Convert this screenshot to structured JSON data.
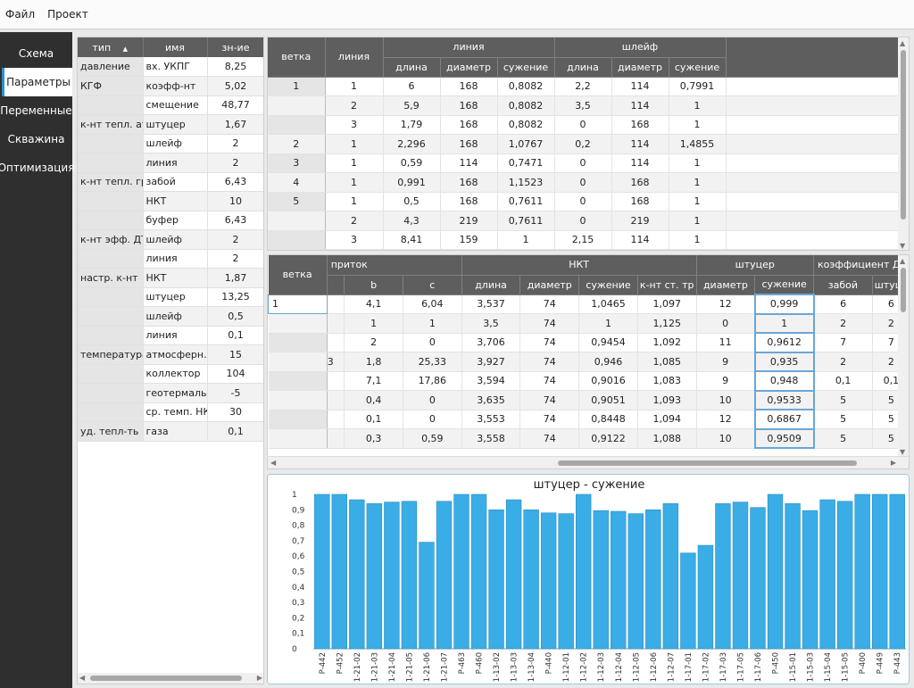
{
  "menu": [
    "Файл",
    "Проект"
  ],
  "nav": {
    "items": [
      "Схема",
      "Параметры",
      "Переменные",
      "Скважина",
      "Оптимизация"
    ],
    "active": 1
  },
  "params": {
    "headers": [
      "тип",
      "имя",
      "зн-ие"
    ],
    "rows": [
      [
        "давление",
        "вх. УКПГ",
        "8,25"
      ],
      [
        "КГФ",
        "коэфф-нт",
        "5,02"
      ],
      [
        "",
        "смещение",
        "48,77"
      ],
      [
        "к-нт тепл. атм",
        "штуцер",
        "1,67"
      ],
      [
        "",
        "шлейф",
        "2"
      ],
      [
        "",
        "линия",
        "2"
      ],
      [
        "к-нт тепл. груг",
        "забой",
        "6,43"
      ],
      [
        "",
        "НКТ",
        "10"
      ],
      [
        "",
        "буфер",
        "6,43"
      ],
      [
        "к-нт эфф. ДТ",
        "шлейф",
        "2"
      ],
      [
        "",
        "линия",
        "2"
      ],
      [
        "настр. к-нт",
        "НКТ",
        "1,87"
      ],
      [
        "",
        "штуцер",
        "13,25"
      ],
      [
        "",
        "шлейф",
        "0,5"
      ],
      [
        "",
        "линия",
        "0,1"
      ],
      [
        "температура",
        "атмосферн.",
        "15"
      ],
      [
        "",
        "коллектор",
        "104"
      ],
      [
        "",
        "геотермаль",
        "-5"
      ],
      [
        "",
        "ср. темп. НКТ",
        "30"
      ],
      [
        "уд. тепл-ть",
        "газа",
        "0,1"
      ]
    ]
  },
  "grid1": {
    "h_branch": "ветка",
    "h_line": "линия",
    "group_line": "линия",
    "group_loop": "шлейф",
    "sub": [
      "длина",
      "диаметр",
      "сужение",
      "длина",
      "диаметр",
      "сужение"
    ],
    "rows": [
      [
        "1",
        "1",
        "6",
        "168",
        "0,8082",
        "2,2",
        "114",
        "0,7991"
      ],
      [
        "",
        "2",
        "5,9",
        "168",
        "0,8082",
        "3,5",
        "114",
        "1"
      ],
      [
        "",
        "3",
        "1,79",
        "168",
        "0,8082",
        "0",
        "168",
        "1"
      ],
      [
        "2",
        "1",
        "2,296",
        "168",
        "1,0767",
        "0,2",
        "114",
        "1,4855"
      ],
      [
        "3",
        "1",
        "0,59",
        "114",
        "0,7471",
        "0",
        "114",
        "1"
      ],
      [
        "4",
        "1",
        "0,991",
        "168",
        "1,1523",
        "0",
        "168",
        "1"
      ],
      [
        "5",
        "1",
        "0,5",
        "168",
        "0,7611",
        "0",
        "168",
        "1"
      ],
      [
        "",
        "2",
        "4,3",
        "219",
        "0,7611",
        "0",
        "219",
        "1"
      ],
      [
        "",
        "3",
        "8,41",
        "159",
        "1",
        "2,15",
        "114",
        "1"
      ]
    ]
  },
  "grid2": {
    "h_branch": "ветка",
    "groups": [
      "приток",
      "НКТ",
      "штуцер",
      "коэффициент Дж.-Т"
    ],
    "sub": [
      "",
      "b",
      "c",
      "длина",
      "диаметр",
      "сужение",
      "к-нт ст. тр",
      "диаметр",
      "сужение",
      "забой",
      "штуце"
    ],
    "branch_first": "1",
    "rows": [
      [
        "",
        "4,1",
        "6,04",
        "3,537",
        "74",
        "1,0465",
        "1,097",
        "12",
        "0,999",
        "6",
        "6"
      ],
      [
        "",
        "1",
        "1",
        "3,5",
        "74",
        "1",
        "1,125",
        "0",
        "1",
        "2",
        "2"
      ],
      [
        "",
        "2",
        "0",
        "3,706",
        "74",
        "0,9454",
        "1,092",
        "11",
        "0,9612",
        "7",
        "7"
      ],
      [
        "3",
        "1,8",
        "25,33",
        "3,927",
        "74",
        "0,946",
        "1,085",
        "9",
        "0,935",
        "2",
        "2"
      ],
      [
        "",
        "7,1",
        "17,86",
        "3,594",
        "74",
        "0,9016",
        "1,083",
        "9",
        "0,948",
        "0,1",
        "0,1"
      ],
      [
        "",
        "0,4",
        "0",
        "3,635",
        "74",
        "0,9051",
        "1,093",
        "10",
        "0,9533",
        "5",
        "5"
      ],
      [
        "",
        "0,1",
        "0",
        "3,553",
        "74",
        "0,8448",
        "1,094",
        "12",
        "0,6867",
        "5",
        "5"
      ],
      [
        "",
        "0,3",
        "0,59",
        "3,558",
        "74",
        "0,9122",
        "1,088",
        "10",
        "0,9509",
        "5",
        "5"
      ]
    ]
  },
  "colors": {
    "bar": "#3aade6",
    "header": "#5e5e5e",
    "nav": "#2f2f2f",
    "accent": "#2a8fd4"
  },
  "chart_data": {
    "type": "bar",
    "title": "штуцер - сужение",
    "ylim": [
      0,
      1
    ],
    "yticks": [
      "0",
      "0,1",
      "0,2",
      "0,3",
      "0,4",
      "0,5",
      "0,6",
      "0,7",
      "0,8",
      "0,9",
      "1"
    ],
    "categories": [
      "Р-442",
      "Р-452",
      "1-21-02",
      "1-21-03",
      "1-21-04",
      "1-21-05",
      "1-21-06",
      "1-21-07",
      "Р-463",
      "Р-460",
      "1-13-02",
      "1-13-03",
      "1-13-04",
      "Р-440",
      "1-12-01",
      "1-12-02",
      "1-12-03",
      "1-12-04",
      "1-12-05",
      "1-12-06",
      "1-12-07",
      "1-17-01",
      "1-17-02",
      "1-17-03",
      "1-17-05",
      "1-17-06",
      "Р-450",
      "1-15-01",
      "1-15-03",
      "1-15-04",
      "1-15-05",
      "Р-400",
      "Р-449",
      "Р-443"
    ],
    "values": [
      1,
      1,
      0.965,
      0.94,
      0.95,
      0.955,
      0.69,
      0.955,
      1,
      1,
      0.9,
      0.965,
      0.9,
      0.88,
      0.875,
      1,
      0.895,
      0.89,
      0.875,
      0.9,
      0.94,
      0.62,
      0.67,
      0.94,
      0.95,
      0.915,
      1,
      0.94,
      0.895,
      0.965,
      0.955,
      1,
      1,
      1
    ],
    "grid": false,
    "legend": "none"
  }
}
